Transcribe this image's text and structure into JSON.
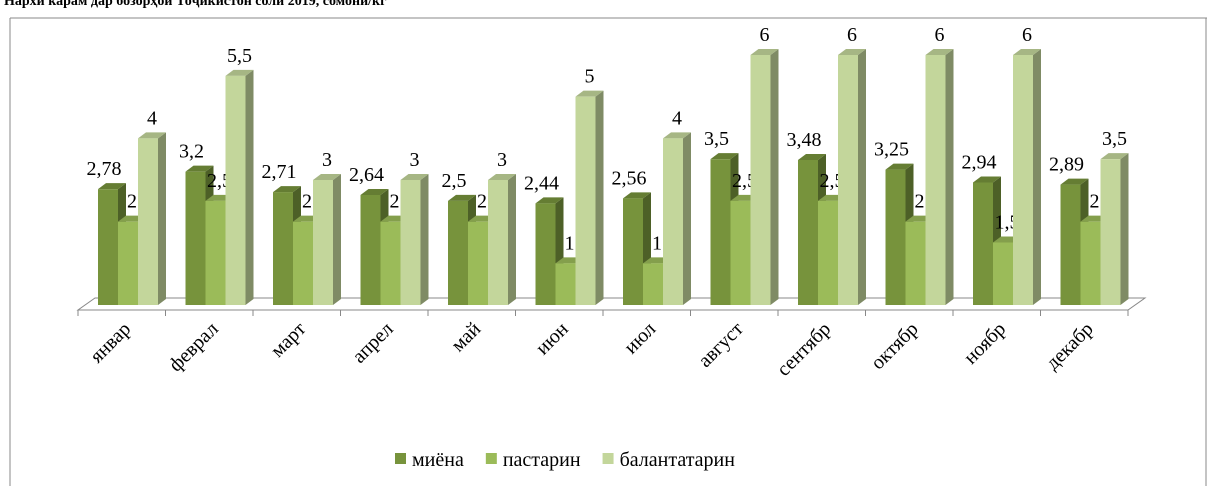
{
  "chart_data": {
    "type": "bar",
    "title": "Нархи карам дар бозорҳои Тоҷикистон соли 2019, сомонӣ/кг",
    "categories": [
      "январ",
      "феврал",
      "март",
      "апрел",
      "май",
      "июн",
      "июл",
      "август",
      "сентябр",
      "октябр",
      "ноябр",
      "декабр"
    ],
    "series": [
      {
        "name": "миёна",
        "color": "#77933c",
        "values": [
          2.78,
          3.2,
          2.71,
          2.64,
          2.5,
          2.44,
          2.56,
          3.5,
          3.48,
          3.25,
          2.94,
          2.89
        ],
        "value_labels": [
          "2,78",
          "3,2",
          "2,71",
          "2,64",
          "2,5",
          "2,44",
          "2,56",
          "3,5",
          "3,48",
          "3,25",
          "2,94",
          "2,89"
        ]
      },
      {
        "name": "пастарин",
        "color": "#9bbb59",
        "values": [
          2,
          2.5,
          2,
          2,
          2,
          1,
          1,
          2.5,
          2.5,
          2,
          1.5,
          2
        ],
        "value_labels": [
          "2",
          "2,5",
          "2",
          "2",
          "2",
          "1",
          "1",
          "2,5",
          "2,5",
          "2",
          "1,5",
          "2"
        ]
      },
      {
        "name": "балантатарин",
        "color": "#c3d69b",
        "values": [
          4,
          5.5,
          3,
          3,
          3,
          5,
          4,
          6,
          6,
          6,
          6,
          3.5
        ],
        "value_labels": [
          "4",
          "5,5",
          "3",
          "3",
          "3",
          "5",
          "4",
          "6",
          "6",
          "6",
          "6",
          "3,5"
        ]
      }
    ]
  }
}
